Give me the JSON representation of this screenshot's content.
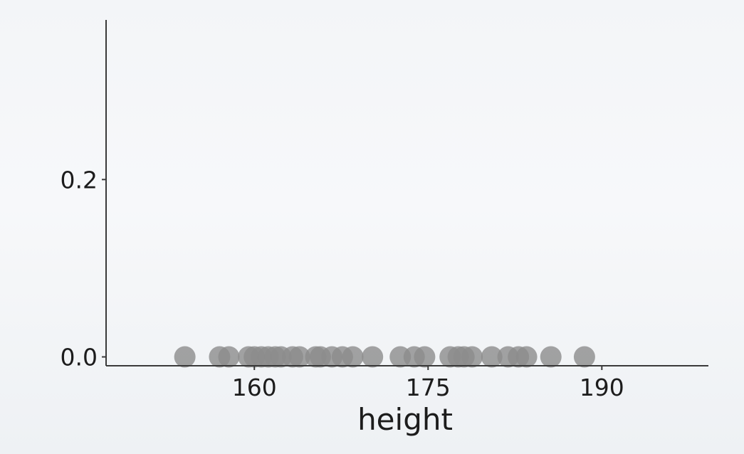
{
  "chart_data": {
    "type": "scatter",
    "title": "",
    "xlabel": "height",
    "ylabel": "",
    "xlim": [
      147.2,
      199.2
    ],
    "ylim": [
      -0.01,
      0.38
    ],
    "x_ticks": [
      160,
      175,
      190
    ],
    "x_tick_labels": [
      "160",
      "175",
      "190"
    ],
    "y_ticks": [
      0.0,
      0.2
    ],
    "y_tick_labels": [
      "0.0",
      "0.2"
    ],
    "grid": false,
    "legend": "none",
    "marker_color": "#8c8c8c",
    "series": [
      {
        "x": [
          154.0,
          157.0,
          157.8,
          159.5,
          160.0,
          160.6,
          161.2,
          161.8,
          162.3,
          163.3,
          163.9,
          165.3,
          165.7,
          166.7,
          167.6,
          168.5,
          170.2,
          172.6,
          173.8,
          174.7,
          176.9,
          177.6,
          178.1,
          178.8,
          180.5,
          181.9,
          182.8,
          183.5,
          185.6,
          188.5
        ],
        "y": [
          0,
          0,
          0,
          0,
          0,
          0,
          0,
          0,
          0,
          0,
          0,
          0,
          0,
          0,
          0,
          0,
          0,
          0,
          0,
          0,
          0,
          0,
          0,
          0,
          0,
          0,
          0,
          0,
          0,
          0
        ]
      }
    ]
  }
}
